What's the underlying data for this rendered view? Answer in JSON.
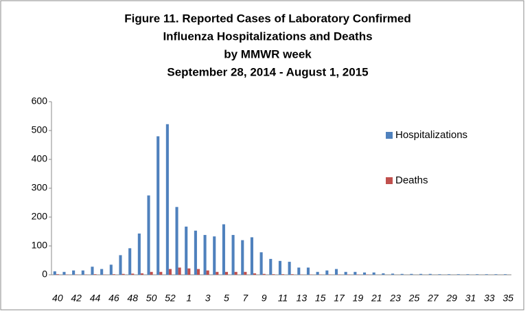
{
  "chart_data": {
    "type": "bar",
    "title": [
      "Figure 11. Reported Cases of Laboratory Confirmed",
      "Influenza Hospitalizations  and Deaths",
      "by MMWR week",
      "September 28, 2014 - August 1, 2015"
    ],
    "categories": [
      "40",
      null,
      "42",
      null,
      "44",
      null,
      "46",
      null,
      "48",
      null,
      "50",
      null,
      "52",
      null,
      "1",
      null,
      "3",
      null,
      "5",
      null,
      "7",
      null,
      "9",
      null,
      "11",
      null,
      "13",
      null,
      "15",
      null,
      "17",
      null,
      "19",
      null,
      "21",
      null,
      "23",
      null,
      "25",
      null,
      "27",
      null,
      "29",
      null,
      "31",
      null,
      "33",
      null,
      "35"
    ],
    "series": [
      {
        "name": "Hospitalizations",
        "color": "#4f81bd",
        "values": [
          12,
          10,
          15,
          15,
          28,
          20,
          35,
          68,
          92,
          143,
          275,
          480,
          522,
          235,
          167,
          153,
          138,
          133,
          175,
          138,
          120,
          130,
          78,
          55,
          48,
          45,
          25,
          25,
          10,
          15,
          20,
          10,
          10,
          8,
          8,
          5,
          4,
          3,
          3,
          3,
          3,
          2,
          2,
          2,
          2,
          2,
          2,
          2,
          2
        ]
      },
      {
        "name": "Deaths",
        "color": "#c0504d",
        "values": [
          2,
          1,
          1,
          1,
          2,
          1,
          2,
          3,
          4,
          5,
          10,
          10,
          20,
          25,
          22,
          20,
          15,
          10,
          10,
          10,
          10,
          5,
          3,
          2,
          2,
          2,
          1,
          1,
          1,
          1,
          1,
          1,
          1,
          1,
          0,
          0,
          0,
          0,
          0,
          0,
          0,
          0,
          0,
          0,
          0,
          0,
          0,
          0,
          0
        ]
      }
    ],
    "ylim": [
      0,
      600
    ],
    "yticks": [
      0,
      100,
      200,
      300,
      400,
      500,
      600
    ],
    "grid": false
  }
}
